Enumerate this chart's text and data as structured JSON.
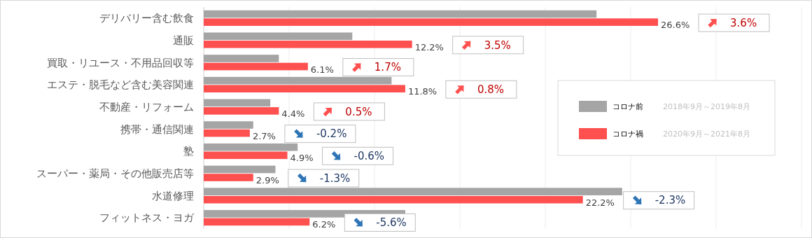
{
  "chart_data": {
    "type": "bar",
    "orientation": "horizontal",
    "categories": [
      "デリバリー含む飲食",
      "通販",
      "買取・リユース・不用品回収等",
      "エステ・脱毛など含む美容関連",
      "不動産・リフォーム",
      "携帯・通信関連",
      "塾",
      "スーパー・薬局・その他販売店等",
      "水道修理",
      "フィットネス・ヨガ"
    ],
    "series": [
      {
        "name": "コロナ前",
        "color": "#a5a5a5",
        "values": [
          23.0,
          8.7,
          4.4,
          11.0,
          3.9,
          2.9,
          5.5,
          4.2,
          24.5,
          11.8
        ]
      },
      {
        "name": "コロナ禍",
        "color": "#ff5050",
        "values": [
          26.6,
          12.2,
          6.1,
          11.8,
          4.4,
          2.7,
          4.9,
          2.9,
          22.2,
          6.2
        ],
        "value_labels": [
          "26.6%",
          "12.2%",
          "6.1%",
          "11.8%",
          "4.4%",
          "2.7%",
          "4.9%",
          "2.9%",
          "22.2%",
          "6.2%"
        ]
      }
    ],
    "xlim": [
      0,
      35
    ],
    "xticks": [
      {
        "value": 0,
        "label": null
      },
      {
        "value": 5,
        "label": null
      },
      {
        "value": 10,
        "label": null
      },
      {
        "value": 15,
        "label": null
      },
      {
        "value": 20,
        "label": null
      },
      {
        "value": 25,
        "label": null
      },
      {
        "value": 30,
        "label": null
      },
      {
        "value": 35,
        "label": null
      }
    ],
    "tick_labels": "y",
    "grid": "x",
    "legend": "right",
    "annotations": [
      "3.6%",
      "3.5%",
      "1.7%",
      "0.8%",
      "0.5%",
      "-0.2%",
      "-0.6%",
      "-1.3%",
      "-2.3%",
      "-5.6%",
      "2018年9月～2019年8月",
      "2020年9月～2021年8月"
    ]
  }
}
